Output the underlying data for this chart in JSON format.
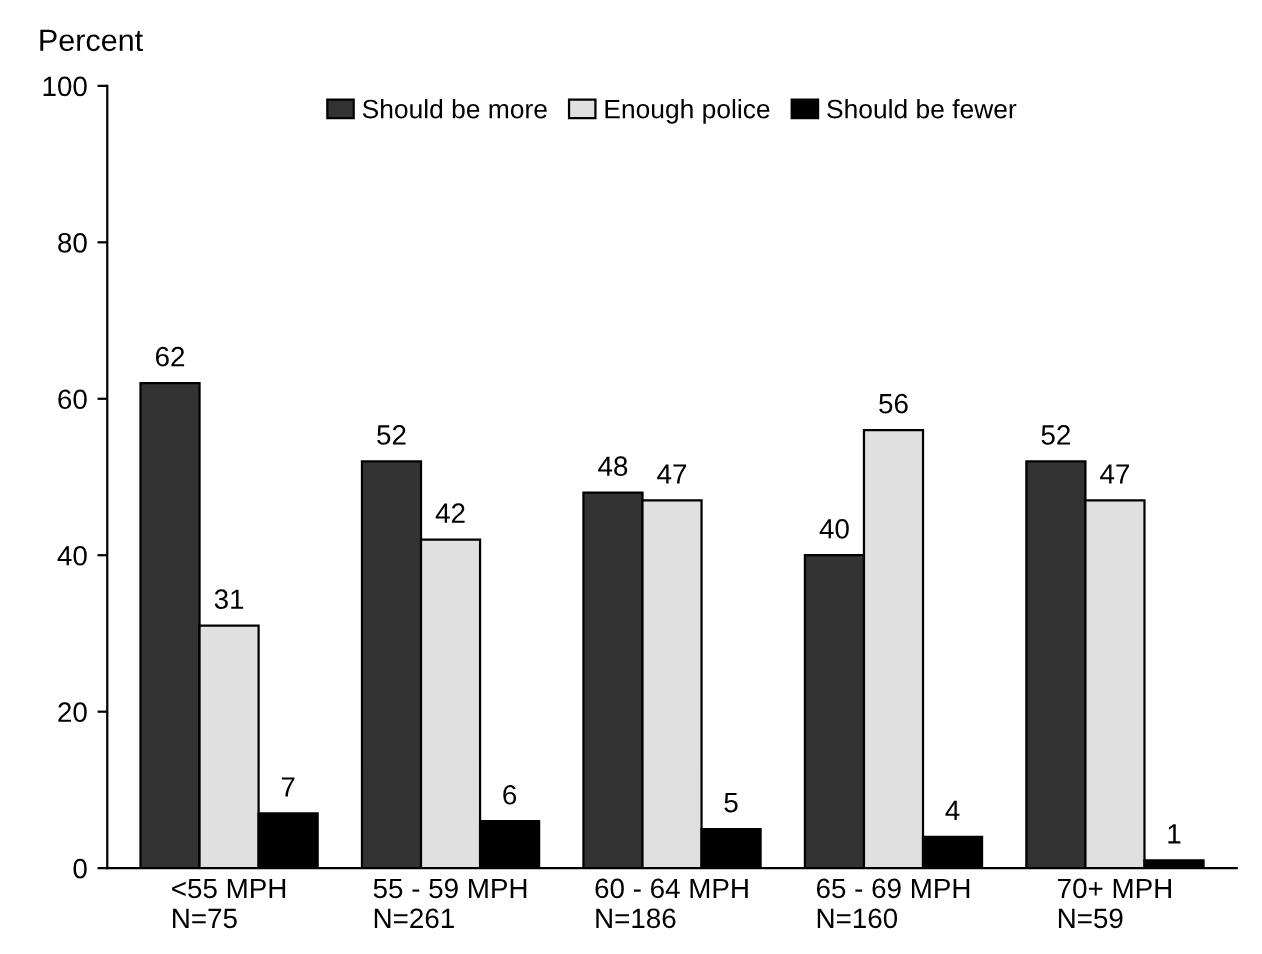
{
  "chart_data": {
    "type": "bar",
    "ylabel": "Percent",
    "categories": [
      "<55 MPH\nN=75",
      "55 - 59 MPH\nN=261",
      "60 - 64 MPH\nN=186",
      "65 - 69 MPH\nN=160",
      "70+ MPH\nN=59"
    ],
    "series": [
      {
        "name": "Should be more",
        "color": "#333333",
        "values": [
          62,
          52,
          48,
          40,
          52
        ]
      },
      {
        "name": "Enough police",
        "color": "#e0e0e0",
        "values": [
          31,
          42,
          47,
          56,
          47
        ]
      },
      {
        "name": "Should be fewer",
        "color": "#000000",
        "values": [
          7,
          6,
          5,
          4,
          1
        ]
      }
    ],
    "ylim": [
      0,
      100
    ],
    "yticks": [
      0,
      20,
      40,
      60,
      80,
      100
    ],
    "data_labels": true,
    "legend": "top",
    "grid": false
  }
}
